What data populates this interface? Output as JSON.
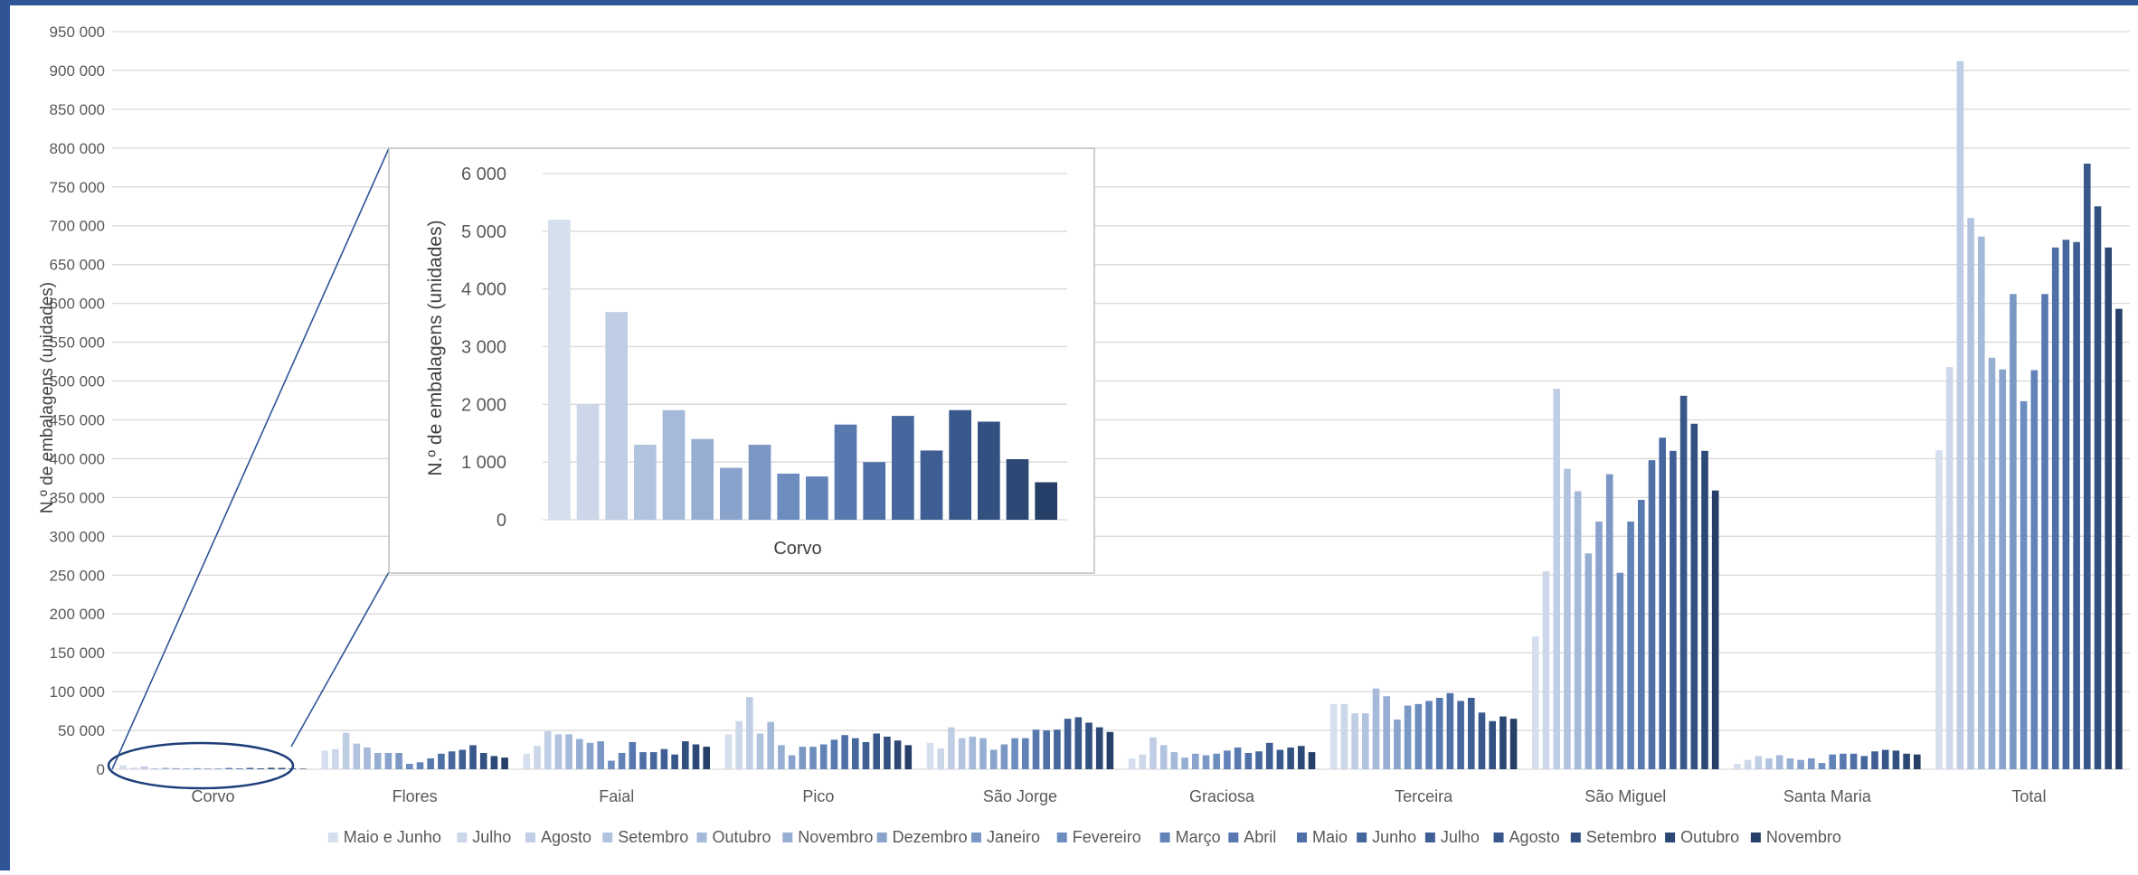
{
  "chart_data": {
    "type": "bar",
    "ylabel": "N.º de embalagens (unidades)",
    "ylim": [
      0,
      950000
    ],
    "yticks": [
      "0",
      "50 000",
      "100 000",
      "150 000",
      "200 000",
      "250 000",
      "300 000",
      "350 000",
      "400 000",
      "450 000",
      "500 000",
      "550 000",
      "600 000",
      "650 000",
      "700 000",
      "750 000",
      "800 000",
      "850 000",
      "900 000",
      "950 000"
    ],
    "grid": true,
    "legend_position": "bottom",
    "categories": [
      "Corvo",
      "Flores",
      "Faial",
      "Pico",
      "São Jorge",
      "Graciosa",
      "Terceira",
      "São Miguel",
      "Santa Maria",
      "Total"
    ],
    "series": [
      {
        "name": "Maio e Junho",
        "color": "#d6dfee",
        "values": [
          5200,
          24000,
          20000,
          45000,
          34000,
          14000,
          84000,
          171000,
          7000,
          411000
        ]
      },
      {
        "name": "Julho",
        "color": "#ccd7ea",
        "values": [
          2000,
          26000,
          30000,
          62000,
          27000,
          19000,
          84000,
          255000,
          12000,
          518000
        ]
      },
      {
        "name": "Agosto",
        "color": "#bfcde5",
        "values": [
          3600,
          47000,
          49000,
          93000,
          54000,
          41000,
          72000,
          490000,
          17000,
          912000
        ]
      },
      {
        "name": "Setembro",
        "color": "#b2c3df",
        "values": [
          1300,
          33000,
          45000,
          46000,
          40000,
          31000,
          72000,
          387000,
          14000,
          710000
        ]
      },
      {
        "name": "Outubro",
        "color": "#a5b9d9",
        "values": [
          1900,
          28000,
          45000,
          61000,
          42000,
          22000,
          104000,
          358000,
          18000,
          686000
        ]
      },
      {
        "name": "Novembro",
        "color": "#97aed3",
        "values": [
          1400,
          21000,
          39000,
          31000,
          40000,
          15000,
          94000,
          278000,
          14000,
          530000
        ]
      },
      {
        "name": "Dezembro",
        "color": "#89a3cc",
        "values": [
          900,
          21000,
          34000,
          18000,
          25000,
          20000,
          64000,
          319000,
          12000,
          515000
        ]
      },
      {
        "name": "Janeiro",
        "color": "#7b98c5",
        "values": [
          1300,
          21000,
          36000,
          29000,
          32000,
          18000,
          82000,
          380000,
          14000,
          612000
        ]
      },
      {
        "name": "Fevereiro",
        "color": "#6e8dbf",
        "values": [
          800,
          7000,
          11000,
          29000,
          40000,
          20000,
          84000,
          253000,
          8000,
          474000
        ]
      },
      {
        "name": "Março",
        "color": "#6183b8",
        "values": [
          750,
          9000,
          21000,
          32000,
          40000,
          24000,
          88000,
          319000,
          19000,
          514000
        ]
      },
      {
        "name": "Abril",
        "color": "#5779b0",
        "values": [
          1650,
          14000,
          35000,
          38000,
          51000,
          28000,
          92000,
          347000,
          20000,
          612000
        ]
      },
      {
        "name": "Maio",
        "color": "#4e70a7",
        "values": [
          1000,
          20000,
          22000,
          44000,
          50000,
          21000,
          98000,
          398000,
          20000,
          672000
        ]
      },
      {
        "name": "Junho",
        "color": "#46679d",
        "values": [
          1800,
          23000,
          22000,
          40000,
          51000,
          23000,
          88000,
          427000,
          17000,
          682000
        ]
      },
      {
        "name": "Julho",
        "color": "#3f5f94",
        "values": [
          1200,
          25000,
          26000,
          35000,
          65000,
          34000,
          92000,
          410000,
          23000,
          679000
        ]
      },
      {
        "name": "Agosto",
        "color": "#38578a",
        "values": [
          1900,
          31000,
          19000,
          46000,
          67000,
          25000,
          73000,
          481000,
          25000,
          780000
        ]
      },
      {
        "name": "Setembro",
        "color": "#325080",
        "values": [
          1700,
          21000,
          36000,
          42000,
          60000,
          28000,
          62000,
          445000,
          24000,
          725000
        ]
      },
      {
        "name": "Outubro",
        "color": "#2c4875",
        "values": [
          1050,
          17000,
          32000,
          37000,
          54000,
          30000,
          68000,
          410000,
          20000,
          672000
        ]
      },
      {
        "name": "Novembro",
        "color": "#263f68",
        "values": [
          650,
          15000,
          29000,
          31000,
          48000,
          22000,
          65000,
          359000,
          19000,
          593000
        ]
      }
    ],
    "inset": {
      "category": "Corvo",
      "ylabel": "N.º de embalagens (unidades)",
      "ylim": [
        0,
        6000
      ],
      "yticks": [
        "0",
        "1 000",
        "2 000",
        "3 000",
        "4 000",
        "5 000",
        "6 000"
      ]
    }
  },
  "colors": {
    "top_bar": "#2f5597",
    "left_bar": "#2f5597",
    "gridline": "#d9d9d9",
    "zoom_lines": "#2f5597",
    "text": "#595959"
  }
}
